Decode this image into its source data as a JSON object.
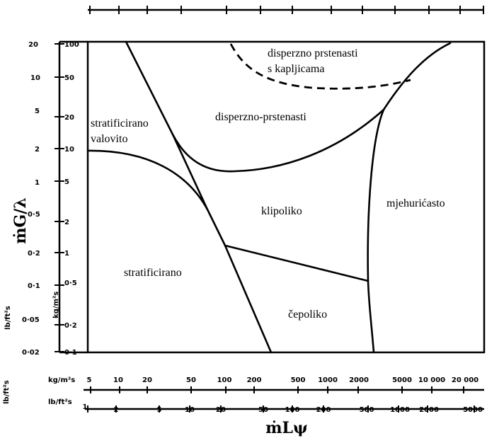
{
  "axes": {
    "y_title": "ṁG/λ",
    "x_title": "ṁLψ",
    "y_outer_unit": "lb/ft²s",
    "y_inner_unit": "kg/m²s",
    "x_row1_unit": "kg/m²s",
    "x_row2_unit": "lb/ft²s",
    "y_outer_ticks": [
      "20",
      "10",
      "5",
      "2",
      "1",
      "0·5",
      "0·2",
      "0·1",
      "0·05",
      "0·02"
    ],
    "y_inner_ticks": [
      "100",
      "50",
      "20",
      "10",
      "5",
      "2",
      "1",
      "0·5",
      "0·2",
      "0·1"
    ],
    "x_row1_ticks": [
      "5",
      "10",
      "20",
      "50",
      "100",
      "200",
      "500",
      "1000",
      "2000",
      "5000",
      "10 000",
      "20 000"
    ],
    "x_row2_ticks": [
      "1",
      "2",
      "5",
      "10",
      "20",
      "50",
      "100",
      "200",
      "500",
      "1000",
      "2000",
      "5000"
    ]
  },
  "regions": {
    "stratified_wavy_line1": "stratificirano",
    "stratified_wavy_line2": "valovito",
    "dispersed_droplets_line1": "disperzno  prstenasti",
    "dispersed_droplets_line2": "s  kapljicama",
    "dispersed_annular": "disperzno-prstenasti",
    "slug": "klipoliko",
    "bubbly": "mjehurićasto",
    "stratified": "stratificirano",
    "plug": "čepoliko"
  }
}
